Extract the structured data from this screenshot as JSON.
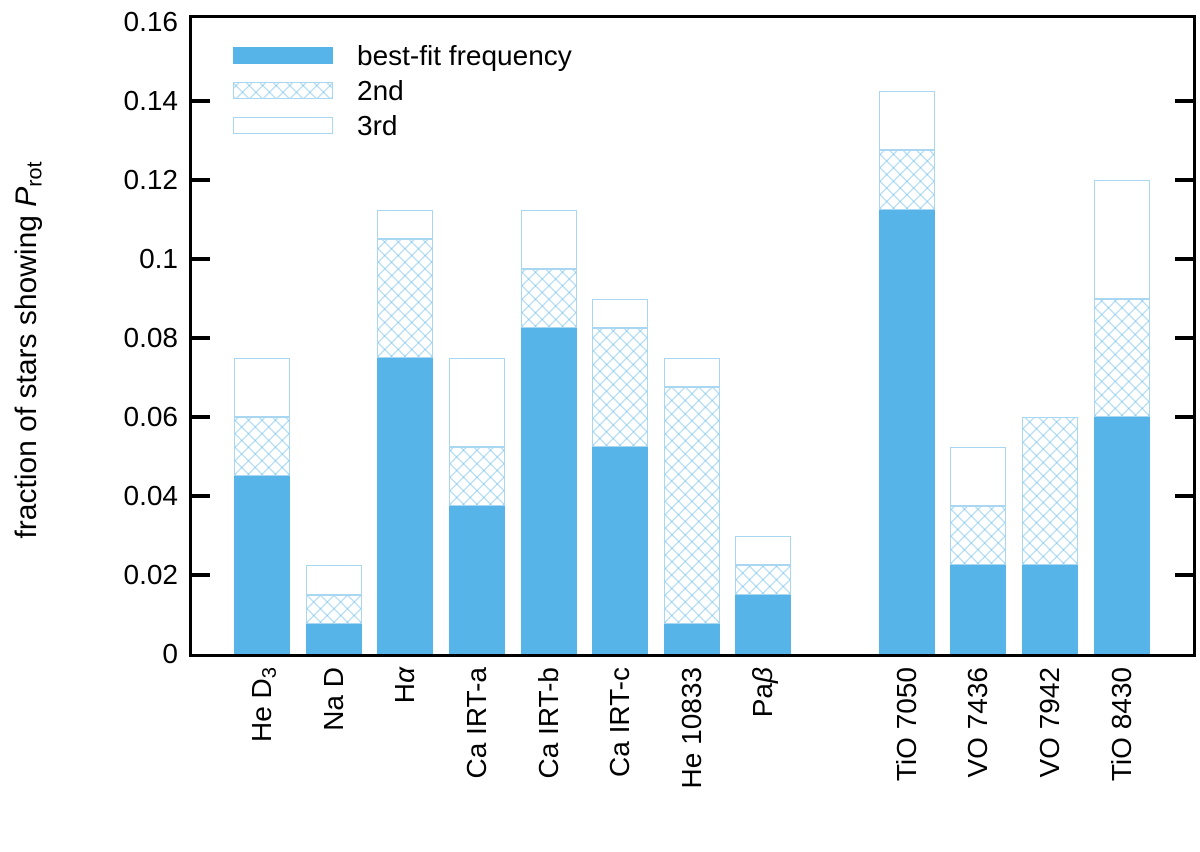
{
  "y_axis": {
    "title_text": "fraction of stars showing Prot",
    "title_parts": [
      {
        "t": "fraction of stars showing "
      },
      {
        "t": "P",
        "s": "i"
      },
      {
        "t": "rot",
        "s": "sub"
      }
    ],
    "tick_values": [
      0,
      0.02,
      0.04,
      0.06,
      0.08,
      0.1,
      0.12,
      0.14,
      0.16
    ],
    "tick_labels": [
      "0",
      "0.02",
      "0.04",
      "0.06",
      "0.08",
      "0.1",
      "0.12",
      "0.14",
      "0.16"
    ]
  },
  "colors": {
    "bar_fill": "#56B4E9",
    "segment_border": "#A9D7F2",
    "axis": "#000000"
  },
  "chart_data": {
    "type": "bar",
    "stacked": true,
    "title": "",
    "xlabel": "",
    "ylabel": "fraction of stars showing P_rot",
    "ylim": [
      0,
      0.16
    ],
    "ytick_step": 0.02,
    "grid": false,
    "legend_position": "top-left",
    "categories": [
      "He D3",
      "Na D",
      "Ha",
      "Ca IRT-a",
      "Ca IRT-b",
      "Ca IRT-c",
      "He 10833",
      "Pab",
      "TiO 7050",
      "VO 7436",
      "VO 7942",
      "TiO 8430"
    ],
    "category_parts": [
      [
        {
          "t": "He D"
        },
        {
          "t": "3",
          "s": "sub"
        }
      ],
      [
        {
          "t": "Na D"
        }
      ],
      [
        {
          "t": "H"
        },
        {
          "t": "α",
          "s": "i"
        }
      ],
      [
        {
          "t": "Ca IRT-a"
        }
      ],
      [
        {
          "t": "Ca IRT-b"
        }
      ],
      [
        {
          "t": "Ca IRT-c"
        }
      ],
      [
        {
          "t": "He 10833"
        }
      ],
      [
        {
          "t": "Pa"
        },
        {
          "t": "β",
          "s": "i"
        }
      ],
      [
        {
          "t": "TiO 7050"
        }
      ],
      [
        {
          "t": "VO 7436"
        }
      ],
      [
        {
          "t": "VO 7942"
        }
      ],
      [
        {
          "t": "TiO 8430"
        }
      ]
    ],
    "category_slots": [
      0,
      1,
      2,
      3,
      4,
      5,
      6,
      7,
      9,
      10,
      11,
      12
    ],
    "n_slots": 13,
    "series": [
      {
        "name": "best-fit frequency",
        "style": "solid",
        "values": [
          0.045,
          0.0075,
          0.075,
          0.0375,
          0.0825,
          0.0525,
          0.0075,
          0.015,
          0.1125,
          0.0225,
          0.0225,
          0.06
        ]
      },
      {
        "name": "2nd",
        "style": "crosshatch",
        "values": [
          0.015,
          0.0075,
          0.03,
          0.015,
          0.015,
          0.03,
          0.06,
          0.0075,
          0.015,
          0.015,
          0.0375,
          0.03
        ]
      },
      {
        "name": "3rd",
        "style": "open",
        "values": [
          0.015,
          0.0075,
          0.0075,
          0.0225,
          0.015,
          0.0075,
          0.0075,
          0.0075,
          0.015,
          0.015,
          0.0,
          0.03
        ]
      }
    ],
    "cumulative_tops": [
      [
        0.045,
        0.06,
        0.075
      ],
      [
        0.0075,
        0.015,
        0.0225
      ],
      [
        0.075,
        0.105,
        0.1125
      ],
      [
        0.0375,
        0.0525,
        0.075
      ],
      [
        0.0825,
        0.0975,
        0.1125
      ],
      [
        0.0525,
        0.0825,
        0.09
      ],
      [
        0.0075,
        0.0675,
        0.075
      ],
      [
        0.015,
        0.0225,
        0.03
      ],
      [
        0.1125,
        0.1275,
        0.1425
      ],
      [
        0.0225,
        0.0375,
        0.0525
      ],
      [
        0.0225,
        0.06,
        0.06
      ],
      [
        0.06,
        0.09,
        0.12
      ]
    ]
  }
}
